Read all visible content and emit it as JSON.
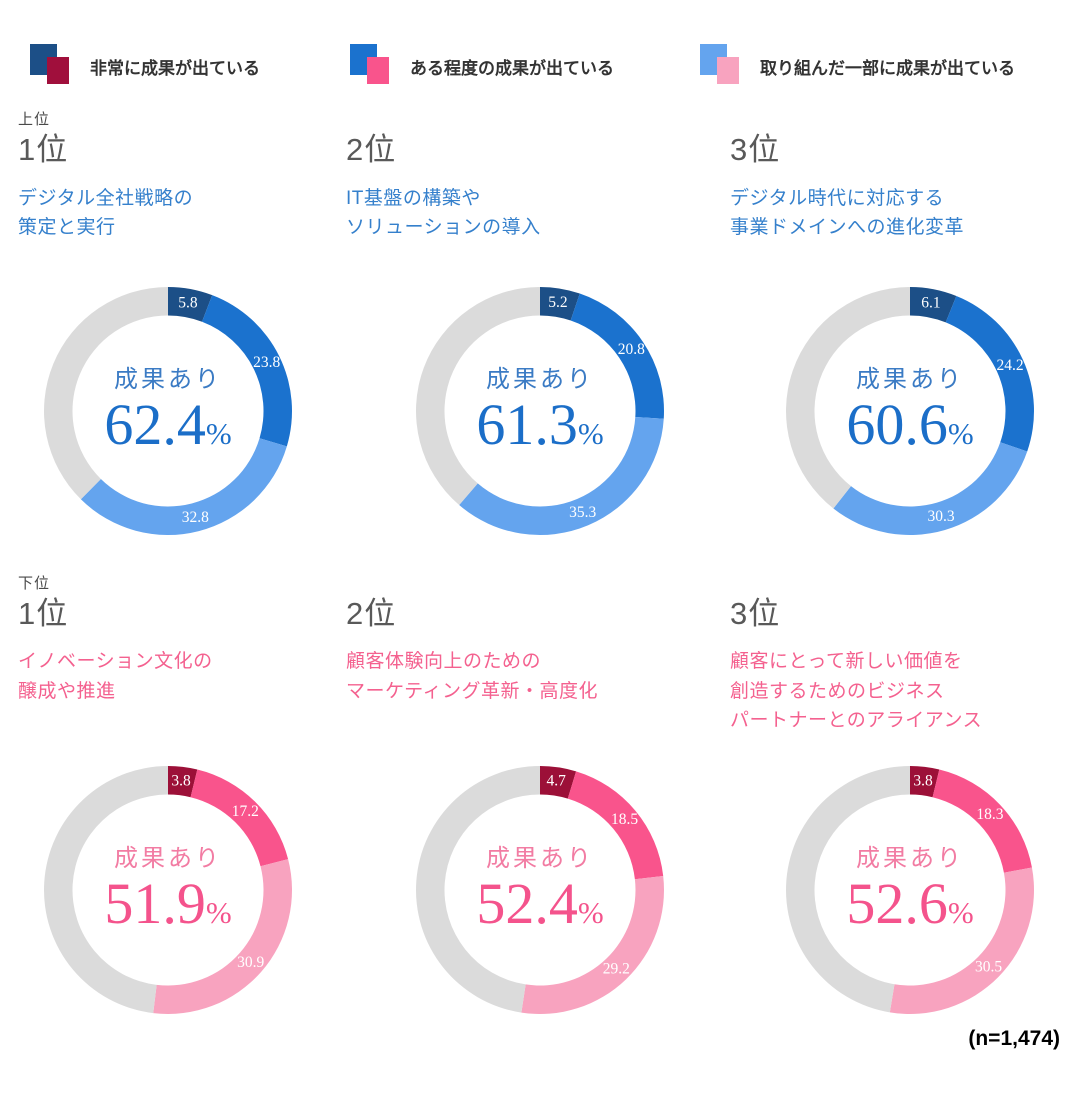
{
  "legend": {
    "items": [
      {
        "label": "非常に成果が出ている",
        "colors": [
          "#1C4F87",
          "#A00F3C"
        ]
      },
      {
        "label": "ある程度の成果が出ている",
        "colors": [
          "#1B72CE",
          "#F9548C"
        ]
      },
      {
        "label": "取り組んだ一部に成果が出ている",
        "colors": [
          "#64A4EE",
          "#F8A3BF"
        ]
      }
    ]
  },
  "themes": {
    "blue": {
      "segments": [
        "#1C4F87",
        "#1B72CE",
        "#64A4EE"
      ],
      "rest": "#DBDBDB",
      "title": "#3580CC",
      "center_label": "#3B7BC4",
      "number": "#1B6EC8",
      "seg_label": "#FFFFFF"
    },
    "pink": {
      "segments": [
        "#9C1038",
        "#F9548C",
        "#F8A3BF"
      ],
      "rest": "#DBDBDB",
      "title": "#F4618F",
      "center_label": "#F27CA3",
      "number": "#F4538C",
      "seg_label": "#FFFFFF"
    }
  },
  "chart_data": [
    {
      "type": "pie",
      "subtype": "donut",
      "theme": "blue",
      "group_label": "上位",
      "rank": "1位",
      "title_lines": [
        "デジタル全社戦略の",
        "策定と実行"
      ],
      "categories": [
        "非常に成果が出ている",
        "ある程度の成果が出ている",
        "取り組んだ一部に成果が出ている"
      ],
      "values": [
        5.8,
        23.8,
        32.8
      ],
      "rest": 37.6,
      "center_label": "成果あり",
      "center_value": "62.4",
      "center_unit": "%"
    },
    {
      "type": "pie",
      "subtype": "donut",
      "theme": "blue",
      "group_label": "",
      "rank": "2位",
      "title_lines": [
        "IT基盤の構築や",
        "ソリューションの導入"
      ],
      "categories": [
        "非常に成果が出ている",
        "ある程度の成果が出ている",
        "取り組んだ一部に成果が出ている"
      ],
      "values": [
        5.2,
        20.8,
        35.3
      ],
      "rest": 38.7,
      "center_label": "成果あり",
      "center_value": "61.3",
      "center_unit": "%"
    },
    {
      "type": "pie",
      "subtype": "donut",
      "theme": "blue",
      "group_label": "",
      "rank": "3位",
      "title_lines": [
        "デジタル時代に対応する",
        "事業ドメインへの進化変革"
      ],
      "categories": [
        "非常に成果が出ている",
        "ある程度の成果が出ている",
        "取り組んだ一部に成果が出ている"
      ],
      "values": [
        6.1,
        24.2,
        30.3
      ],
      "rest": 39.4,
      "center_label": "成果あり",
      "center_value": "60.6",
      "center_unit": "%"
    },
    {
      "type": "pie",
      "subtype": "donut",
      "theme": "pink",
      "group_label": "下位",
      "rank": "1位",
      "title_lines": [
        "イノベーション文化の",
        "醸成や推進"
      ],
      "categories": [
        "非常に成果が出ている",
        "ある程度の成果が出ている",
        "取り組んだ一部に成果が出ている"
      ],
      "values": [
        3.8,
        17.2,
        30.9
      ],
      "rest": 48.1,
      "center_label": "成果あり",
      "center_value": "51.9",
      "center_unit": "%"
    },
    {
      "type": "pie",
      "subtype": "donut",
      "theme": "pink",
      "group_label": "",
      "rank": "2位",
      "title_lines": [
        "顧客体験向上のための",
        "マーケティング革新・高度化"
      ],
      "categories": [
        "非常に成果が出ている",
        "ある程度の成果が出ている",
        "取り組んだ一部に成果が出ている"
      ],
      "values": [
        4.7,
        18.5,
        29.2
      ],
      "rest": 47.6,
      "center_label": "成果あり",
      "center_value": "52.4",
      "center_unit": "%"
    },
    {
      "type": "pie",
      "subtype": "donut",
      "theme": "pink",
      "group_label": "",
      "rank": "3位",
      "title_lines": [
        "顧客にとって新しい価値を",
        "創造するためのビジネス",
        "パートナーとのアライアンス"
      ],
      "categories": [
        "非常に成果が出ている",
        "ある程度の成果が出ている",
        "取り組んだ一部に成果が出ている"
      ],
      "values": [
        3.8,
        18.3,
        30.5
      ],
      "rest": 47.4,
      "center_label": "成果あり",
      "center_value": "52.6",
      "center_unit": "%"
    }
  ],
  "footer": {
    "label": "(n=1,474)"
  }
}
